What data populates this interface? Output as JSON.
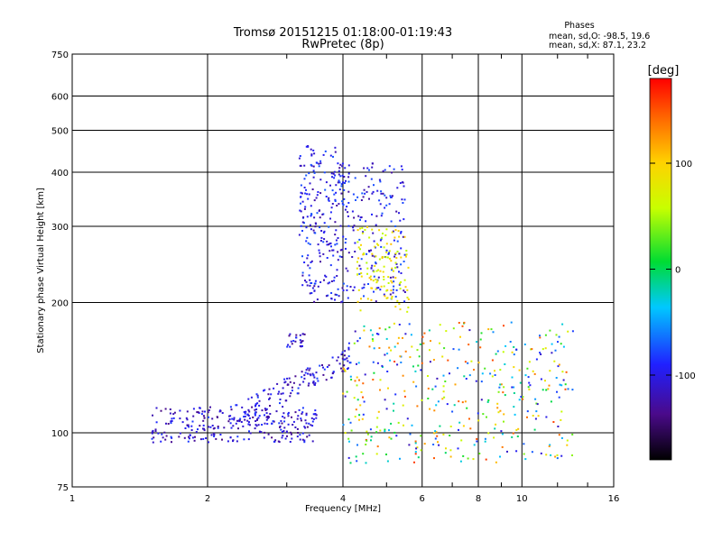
{
  "chart_data": {
    "type": "scatter",
    "title": "Tromsø 20151215 01:18:00-01:19:43",
    "subtitle": "RwPretec (8p)",
    "xlabel": "Frequency [MHz]",
    "ylabel": "Stationary phase Virtual Height [km]",
    "x_scale": "log",
    "y_scale": "log",
    "xlim": [
      1,
      16
    ],
    "ylim": [
      75,
      750
    ],
    "x_ticks": [
      "1",
      "2",
      "4",
      "6",
      "8",
      "10",
      "16"
    ],
    "x_tick_values": [
      1,
      2,
      4,
      6,
      8,
      10,
      16
    ],
    "y_ticks": [
      "75",
      "100",
      "200",
      "300",
      "400",
      "500",
      "600",
      "750"
    ],
    "y_tick_values": [
      75,
      100,
      200,
      300,
      400,
      500,
      600,
      750
    ],
    "grid": true,
    "stats": {
      "heading": "Phases",
      "line_o": "mean, sd,O: -98.5, 19.6",
      "line_x": "mean, sd,X:  87.1, 23.2"
    },
    "colorbar": {
      "label": "[deg]",
      "range": [
        -180,
        180
      ],
      "tick_labels": [
        "100",
        "0",
        "-100"
      ],
      "tick_values": [
        100,
        0,
        -100
      ],
      "colormap": "rainbow"
    },
    "clusters": [
      {
        "name": "low-frequency trace",
        "f": [
          1.5,
          3.5
        ],
        "h": [
          95,
          115
        ],
        "phase": -110,
        "n": 260
      },
      {
        "name": "rising trace",
        "f": [
          2.3,
          4.2
        ],
        "h": [
          110,
          150
        ],
        "phase": -105,
        "n": 140
      },
      {
        "name": "F-layer trace A",
        "f": [
          3.2,
          4.0
        ],
        "h": [
          200,
          460
        ],
        "phase": -100,
        "n": 220
      },
      {
        "name": "F-layer trace B",
        "f": [
          3.9,
          5.5
        ],
        "h": [
          200,
          420
        ],
        "phase": -100,
        "n": 200
      },
      {
        "name": "F-layer X-mode",
        "f": [
          4.3,
          5.6
        ],
        "h": [
          190,
          300
        ],
        "phase": 80,
        "n": 120
      },
      {
        "name": "spread region",
        "f": [
          4.0,
          13.0
        ],
        "h": [
          85,
          180
        ],
        "phase": 40,
        "n": 420
      },
      {
        "name": "isolated blob",
        "f": [
          3.0,
          3.3
        ],
        "h": [
          158,
          170
        ],
        "phase": -110,
        "n": 25
      }
    ]
  }
}
